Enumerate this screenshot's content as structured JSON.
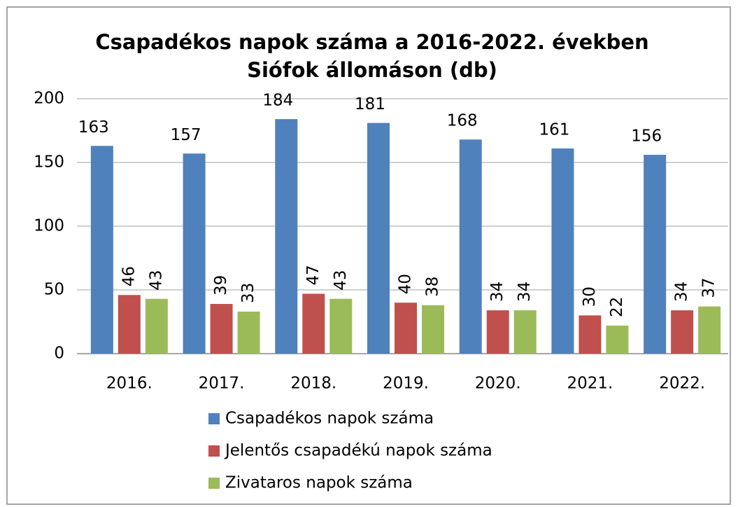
{
  "chart_data": {
    "type": "bar",
    "title": [
      "Csapadékos napok száma a 2016-2022. években",
      "Siófok állomáson (db)"
    ],
    "categories": [
      "2016.",
      "2017.",
      "2018.",
      "2019.",
      "2020.",
      "2021.",
      "2022."
    ],
    "series": [
      {
        "name": "Csapadékos napok száma",
        "color": "#4f81bd",
        "values": [
          163,
          157,
          184,
          181,
          168,
          161,
          156
        ]
      },
      {
        "name": "Jelentős csapadékú napok száma",
        "color": "#c0504d",
        "values": [
          46,
          39,
          47,
          40,
          34,
          30,
          34
        ]
      },
      {
        "name": "Zivataros napok száma",
        "color": "#9bbb59",
        "values": [
          43,
          33,
          43,
          38,
          34,
          22,
          37
        ]
      }
    ],
    "ylim": [
      0,
      200
    ],
    "yticks": [
      0,
      50,
      100,
      150,
      200
    ],
    "grid": true
  }
}
